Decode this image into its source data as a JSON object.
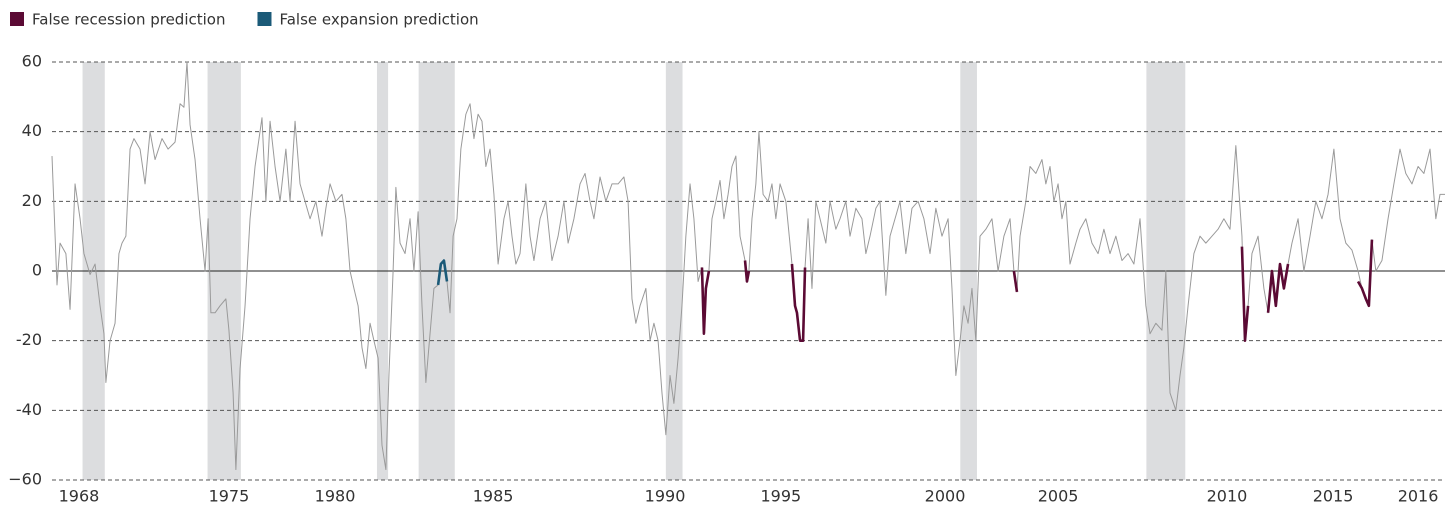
{
  "chart_data": {
    "type": "line",
    "xlim": [
      1968.5,
      2018.65
    ],
    "ylim": [
      -60,
      60
    ],
    "yticks": [
      60,
      40,
      20,
      0,
      -20,
      -40,
      {
        "value": -60,
        "label": "−60"
      }
    ],
    "xticks": [
      {
        "value": 1969.47,
        "label": "1968"
      },
      {
        "value": 1974.87,
        "label": "1975"
      },
      {
        "value": 1978.69,
        "label": "1980"
      },
      {
        "value": 1984.38,
        "label": "1985"
      },
      {
        "value": 1990.57,
        "label": "1990"
      },
      {
        "value": 1994.74,
        "label": "1995"
      },
      {
        "value": 2000.65,
        "label": "2000"
      },
      {
        "value": 2004.72,
        "label": "2005"
      },
      {
        "value": 2010.8,
        "label": "2010"
      },
      {
        "value": 2014.62,
        "label": "2015"
      },
      {
        "value": 2017.68,
        "label": "2016"
      }
    ],
    "grid": true,
    "color": "#9a9a9a",
    "shade_color": "#dcdddf",
    "shaded": [
      [
        1969.6,
        1970.4
      ],
      [
        1974.1,
        1975.3
      ],
      [
        1980.2,
        1980.6
      ],
      [
        1981.7,
        1983.0
      ],
      [
        1990.6,
        1991.2
      ],
      [
        2001.2,
        2001.8
      ],
      [
        2007.9,
        2009.3
      ]
    ],
    "x": [
      1968.5,
      1968.68,
      1968.79,
      1969.0,
      1969.15,
      1969.33,
      1969.51,
      1969.65,
      1969.87,
      1970.05,
      1970.23,
      1970.37,
      1970.44,
      1970.59,
      1970.77,
      1970.91,
      1971.02,
      1971.16,
      1971.31,
      1971.45,
      1971.67,
      1971.85,
      1972.03,
      1972.21,
      1972.46,
      1972.68,
      1972.93,
      1973.11,
      1973.25,
      1973.36,
      1973.47,
      1973.65,
      1973.83,
      1974.01,
      1974.12,
      1974.22,
      1974.37,
      1974.55,
      1974.76,
      1974.87,
      1975.02,
      1975.12,
      1975.27,
      1975.45,
      1975.63,
      1975.81,
      1976.06,
      1976.2,
      1976.35,
      1976.53,
      1976.71,
      1976.92,
      1977.07,
      1977.25,
      1977.43,
      1977.61,
      1977.79,
      1978.0,
      1978.22,
      1978.36,
      1978.51,
      1978.72,
      1978.94,
      1979.08,
      1979.23,
      1979.37,
      1979.52,
      1979.66,
      1979.8,
      1979.95,
      1980.09,
      1980.24,
      1980.38,
      1980.52,
      1980.63,
      1980.78,
      1980.88,
      1981.03,
      1981.21,
      1981.39,
      1981.53,
      1981.68,
      1981.82,
      1981.96,
      1982.11,
      1982.25,
      1982.4,
      1982.5,
      1982.61,
      1982.72,
      1982.83,
      1982.94,
      1983.08,
      1983.22,
      1983.4,
      1983.55,
      1983.69,
      1983.84,
      1983.98,
      1984.12,
      1984.27,
      1984.41,
      1984.56,
      1984.77,
      1984.92,
      1985.06,
      1985.2,
      1985.35,
      1985.56,
      1985.71,
      1985.85,
      1986.07,
      1986.28,
      1986.5,
      1986.72,
      1986.93,
      1987.08,
      1987.29,
      1987.51,
      1987.69,
      1987.87,
      1988.01,
      1988.23,
      1988.44,
      1988.66,
      1988.88,
      1989.09,
      1989.24,
      1989.38,
      1989.52,
      1989.67,
      1989.88,
      1990.03,
      1990.17,
      1990.32,
      1990.46,
      1990.6,
      1990.75,
      1990.89,
      1991.04,
      1991.18,
      1991.32,
      1991.47,
      1991.61,
      1991.76,
      1991.9,
      1991.97,
      1992.04,
      1992.15,
      1992.26,
      1992.4,
      1992.55,
      1992.69,
      1992.84,
      1992.98,
      1993.12,
      1993.27,
      1993.45,
      1993.52,
      1993.59,
      1993.7,
      1993.84,
      1993.95,
      1994.1,
      1994.28,
      1994.42,
      1994.56,
      1994.71,
      1994.92,
      1995.14,
      1995.25,
      1995.32,
      1995.43,
      1995.54,
      1995.61,
      1995.72,
      1995.86,
      1996.0,
      1996.15,
      1996.36,
      1996.51,
      1996.72,
      1996.87,
      1997.08,
      1997.23,
      1997.44,
      1997.66,
      1997.8,
      1997.95,
      1998.16,
      1998.31,
      1998.52,
      1998.67,
      1998.85,
      1999.03,
      1999.24,
      1999.46,
      1999.68,
      1999.89,
      2000.11,
      2000.32,
      2000.54,
      2000.76,
      2000.9,
      2001.04,
      2001.19,
      2001.33,
      2001.48,
      2001.62,
      2001.76,
      2001.91,
      2002.12,
      2002.34,
      2002.56,
      2002.77,
      2002.99,
      2003.13,
      2003.24,
      2003.35,
      2003.56,
      2003.71,
      2003.92,
      2004.14,
      2004.28,
      2004.43,
      2004.57,
      2004.72,
      2004.86,
      2005.0,
      2005.15,
      2005.36,
      2005.51,
      2005.72,
      2005.94,
      2006.16,
      2006.37,
      2006.59,
      2006.8,
      2007.02,
      2007.24,
      2007.45,
      2007.67,
      2007.88,
      2008.03,
      2008.24,
      2008.46,
      2008.6,
      2008.75,
      2008.96,
      2009.11,
      2009.25,
      2009.4,
      2009.61,
      2009.83,
      2010.04,
      2010.26,
      2010.48,
      2010.69,
      2010.91,
      2011.12,
      2011.34,
      2011.45,
      2011.56,
      2011.7,
      2011.92,
      2012.13,
      2012.28,
      2012.42,
      2012.56,
      2012.71,
      2012.85,
      2013.0,
      2013.14,
      2013.36,
      2013.57,
      2013.79,
      2014.0,
      2014.22,
      2014.44,
      2014.65,
      2014.87,
      2015.08,
      2015.3,
      2015.52,
      2015.66,
      2015.8,
      2015.91,
      2016.02,
      2016.16,
      2016.38,
      2016.6,
      2016.81,
      2017.03,
      2017.24,
      2017.46,
      2017.68,
      2017.89,
      2018.11,
      2018.32,
      2018.47,
      2018.65
    ],
    "values": [
      33,
      -4,
      8,
      5,
      -11,
      25,
      15,
      5,
      -1,
      2,
      -10,
      -18,
      -32,
      -20,
      -15,
      5,
      8,
      10,
      35,
      38,
      35,
      25,
      40,
      32,
      38,
      35,
      37,
      48,
      47,
      60,
      42,
      32,
      15,
      0,
      15,
      -12,
      -12,
      -10,
      -8,
      -17,
      -35,
      -57,
      -28,
      -10,
      15,
      30,
      44,
      20,
      43,
      30,
      20,
      35,
      20,
      43,
      25,
      20,
      15,
      20,
      10,
      18,
      25,
      20,
      22,
      15,
      0,
      -5,
      -10,
      -22,
      -28,
      -15,
      -20,
      -25,
      -50,
      -57,
      -30,
      0,
      24,
      8,
      5,
      15,
      0,
      17,
      -10,
      -32,
      -18,
      -5,
      -4,
      2,
      3,
      -3,
      -12,
      10,
      15,
      35,
      45,
      48,
      38,
      45,
      43,
      30,
      35,
      22,
      2,
      15,
      20,
      10,
      2,
      5,
      25,
      10,
      3,
      15,
      20,
      3,
      10,
      20,
      8,
      15,
      25,
      28,
      20,
      15,
      27,
      20,
      25,
      25,
      27,
      20,
      -8,
      -15,
      -10,
      -5,
      -20,
      -15,
      -20,
      -35,
      -47,
      -30,
      -38,
      -25,
      -10,
      10,
      25,
      15,
      -3,
      1,
      -18,
      -5,
      0,
      15,
      20,
      26,
      15,
      22,
      30,
      33,
      10,
      3,
      -3,
      0,
      15,
      25,
      40,
      22,
      20,
      25,
      15,
      25,
      20,
      2,
      -10,
      -12,
      -20,
      -20,
      1,
      15,
      -5,
      20,
      15,
      8,
      20,
      12,
      15,
      20,
      10,
      18,
      15,
      5,
      10,
      18,
      20,
      -7,
      10,
      15,
      20,
      5,
      18,
      20,
      15,
      5,
      18,
      10,
      15,
      -5,
      -30,
      -20,
      -10,
      -15,
      -5,
      -20,
      10,
      12,
      15,
      0,
      10,
      15,
      0,
      -6,
      10,
      20,
      30,
      28,
      32,
      25,
      30,
      20,
      25,
      15,
      20,
      2,
      8,
      12,
      15,
      8,
      5,
      12,
      5,
      10,
      3,
      5,
      2,
      15,
      -10,
      -18,
      -15,
      -17,
      0,
      -35,
      -40,
      -30,
      -22,
      -10,
      5,
      10,
      8,
      10,
      12,
      15,
      12,
      36,
      10,
      -20,
      -10,
      5,
      10,
      -5,
      -12,
      0,
      -10,
      2,
      -5,
      2,
      8,
      15,
      0,
      10,
      20,
      15,
      22,
      35,
      15,
      8,
      6,
      0,
      -5,
      -8,
      -10,
      9,
      0,
      3,
      15,
      25,
      35,
      28,
      25,
      30,
      28,
      35,
      15,
      22,
      22
    ],
    "series": [
      {
        "name": "False recession prediction",
        "color": "#5b0a34",
        "pieces": [
          {
            "x": [
              1991.9,
              1991.97,
              1992.04,
              1992.15
            ],
            "values": [
              1,
              -18,
              -5,
              0
            ]
          },
          {
            "x": [
              1993.45,
              1993.52,
              1993.59
            ],
            "values": [
              3,
              -3,
              0
            ]
          },
          {
            "x": [
              1995.14,
              1995.25,
              1995.32,
              1995.43,
              1995.54,
              1995.61
            ],
            "values": [
              2,
              -10,
              -12,
              -20,
              -20,
              1
            ]
          },
          {
            "x": [
              2003.13,
              2003.24
            ],
            "values": [
              0,
              -6
            ]
          },
          {
            "x": [
              2011.34,
              2011.45,
              2011.56
            ],
            "values": [
              7,
              -20,
              -10
            ]
          },
          {
            "x": [
              2012.28,
              2012.42,
              2012.56,
              2012.71,
              2012.85,
              2013.0
            ],
            "values": [
              -12,
              0,
              -10,
              2,
              -5,
              2
            ]
          },
          {
            "x": [
              2015.52,
              2015.66,
              2015.8,
              2015.91,
              2016.02
            ],
            "values": [
              -3,
              -5,
              -8,
              -10,
              9
            ]
          }
        ]
      },
      {
        "name": "False expansion prediction",
        "color": "#1b5a78",
        "pieces": [
          {
            "x": [
              1982.4,
              1982.5,
              1982.61,
              1982.72
            ],
            "values": [
              -4,
              2,
              3,
              -3
            ]
          }
        ]
      }
    ]
  }
}
